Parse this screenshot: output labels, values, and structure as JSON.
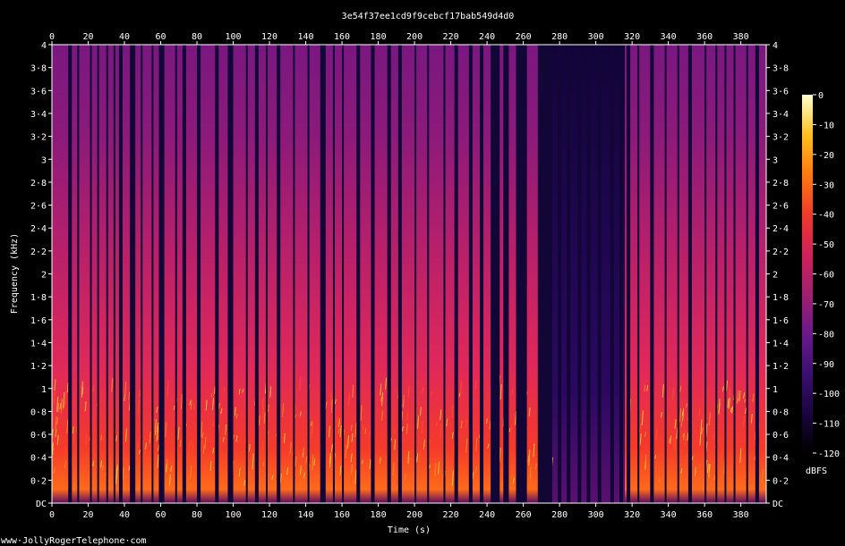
{
  "chart_data": {
    "type": "heatmap",
    "title": "3e54f37ee1cd9f9cebcf17bab549d4d0",
    "xlabel": "Time (s)",
    "ylabel": "Frequency (kHz)",
    "xlim": [
      0,
      394
    ],
    "ylim": [
      0,
      4
    ],
    "x_ticks": [
      "0",
      "20",
      "40",
      "60",
      "80",
      "100",
      "120",
      "140",
      "160",
      "180",
      "200",
      "220",
      "240",
      "260",
      "280",
      "300",
      "320",
      "340",
      "360",
      "380"
    ],
    "y_ticks": [
      "DC",
      "0·2",
      "0·4",
      "0·6",
      "0·8",
      "1",
      "1·2",
      "1·4",
      "1·6",
      "1·8",
      "2",
      "2·2",
      "2·4",
      "2·6",
      "2·8",
      "3",
      "3·2",
      "3·4",
      "3·6",
      "3·8",
      "4"
    ],
    "colorbar": {
      "label": "dBFS",
      "ticks": [
        "0",
        "-10",
        "-20",
        "-30",
        "-40",
        "-50",
        "-60",
        "-70",
        "-80",
        "-90",
        "-100",
        "-110",
        "-120"
      ],
      "range": [
        -120,
        0
      ]
    },
    "colormap": [
      "#000000",
      "#1a0540",
      "#3b0f70",
      "#6a1a8a",
      "#a0206f",
      "#d1205a",
      "#f03a2a",
      "#ff7a10",
      "#ffc020",
      "#ffffd0"
    ],
    "silent_segments_s": [
      [
        9,
        11
      ],
      [
        14,
        15
      ],
      [
        21,
        22
      ],
      [
        25,
        26
      ],
      [
        30,
        31
      ],
      [
        34,
        35
      ],
      [
        37,
        39
      ],
      [
        43,
        46
      ],
      [
        49,
        50
      ],
      [
        55,
        56
      ],
      [
        59,
        62
      ],
      [
        68,
        69
      ],
      [
        72,
        74
      ],
      [
        80,
        82
      ],
      [
        90,
        92
      ],
      [
        97,
        100
      ],
      [
        107,
        108
      ],
      [
        112,
        114
      ],
      [
        118,
        119
      ],
      [
        124,
        126
      ],
      [
        133,
        134
      ],
      [
        141,
        142
      ],
      [
        148,
        151
      ],
      [
        155,
        156
      ],
      [
        160,
        161
      ],
      [
        168,
        170
      ],
      [
        176,
        178
      ],
      [
        185,
        187
      ],
      [
        191,
        193
      ],
      [
        200,
        201
      ],
      [
        207,
        208
      ],
      [
        216,
        217
      ],
      [
        222,
        224
      ],
      [
        230,
        232
      ],
      [
        236,
        238
      ],
      [
        242,
        247
      ],
      [
        249,
        252
      ],
      [
        256,
        262
      ],
      [
        268,
        276
      ],
      [
        279,
        281
      ],
      [
        284,
        286
      ],
      [
        290,
        292
      ],
      [
        295,
        297
      ],
      [
        301,
        303
      ],
      [
        308,
        310
      ],
      [
        313,
        315
      ],
      [
        317,
        319
      ],
      [
        323,
        324
      ],
      [
        330,
        332
      ],
      [
        338,
        339
      ],
      [
        345,
        346
      ],
      [
        351,
        353
      ],
      [
        360,
        361
      ],
      [
        366,
        367
      ],
      [
        371,
        372
      ],
      [
        376,
        377
      ],
      [
        383,
        384
      ],
      [
        388,
        390
      ]
    ],
    "quiet_segments_s": [
      [
        276,
        316
      ]
    ]
  },
  "footer": {
    "watermark": "www·JollyRogerTelephone·com"
  }
}
